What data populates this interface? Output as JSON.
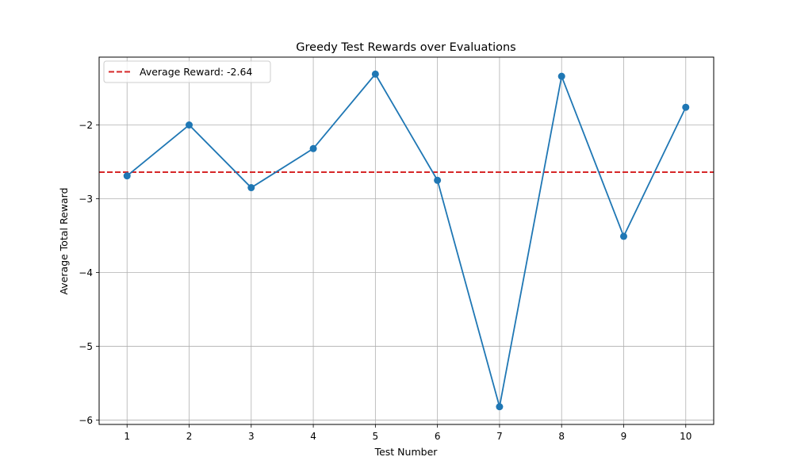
{
  "chart_data": {
    "type": "line",
    "title": "Greedy Test Rewards over Evaluations",
    "xlabel": "Test Number",
    "ylabel": "Average Total Reward",
    "x": [
      1,
      2,
      3,
      4,
      5,
      6,
      7,
      8,
      9,
      10
    ],
    "series": [
      {
        "values": [
          -2.69,
          -2.0,
          -2.85,
          -2.32,
          -1.31,
          -2.75,
          -5.82,
          -1.34,
          -3.51,
          -1.76
        ],
        "color": "#1f77b4",
        "marker": "circle"
      }
    ],
    "reference_line": {
      "type": "horizontal",
      "y": -2.64,
      "style": "dashed",
      "color": "#d62728",
      "label": "Average Reward: -2.64"
    },
    "xticks": [
      "1",
      "2",
      "3",
      "4",
      "5",
      "6",
      "7",
      "8",
      "9",
      "10"
    ],
    "yticks": [
      -6,
      -5,
      -4,
      -3,
      -2
    ],
    "ytick_labels": [
      "−6",
      "−5",
      "−4",
      "−3",
      "−2"
    ],
    "xlim": [
      0.55,
      10.45
    ],
    "ylim": [
      -6.06,
      -1.08
    ],
    "grid": true,
    "legend_position": "upper-left"
  }
}
